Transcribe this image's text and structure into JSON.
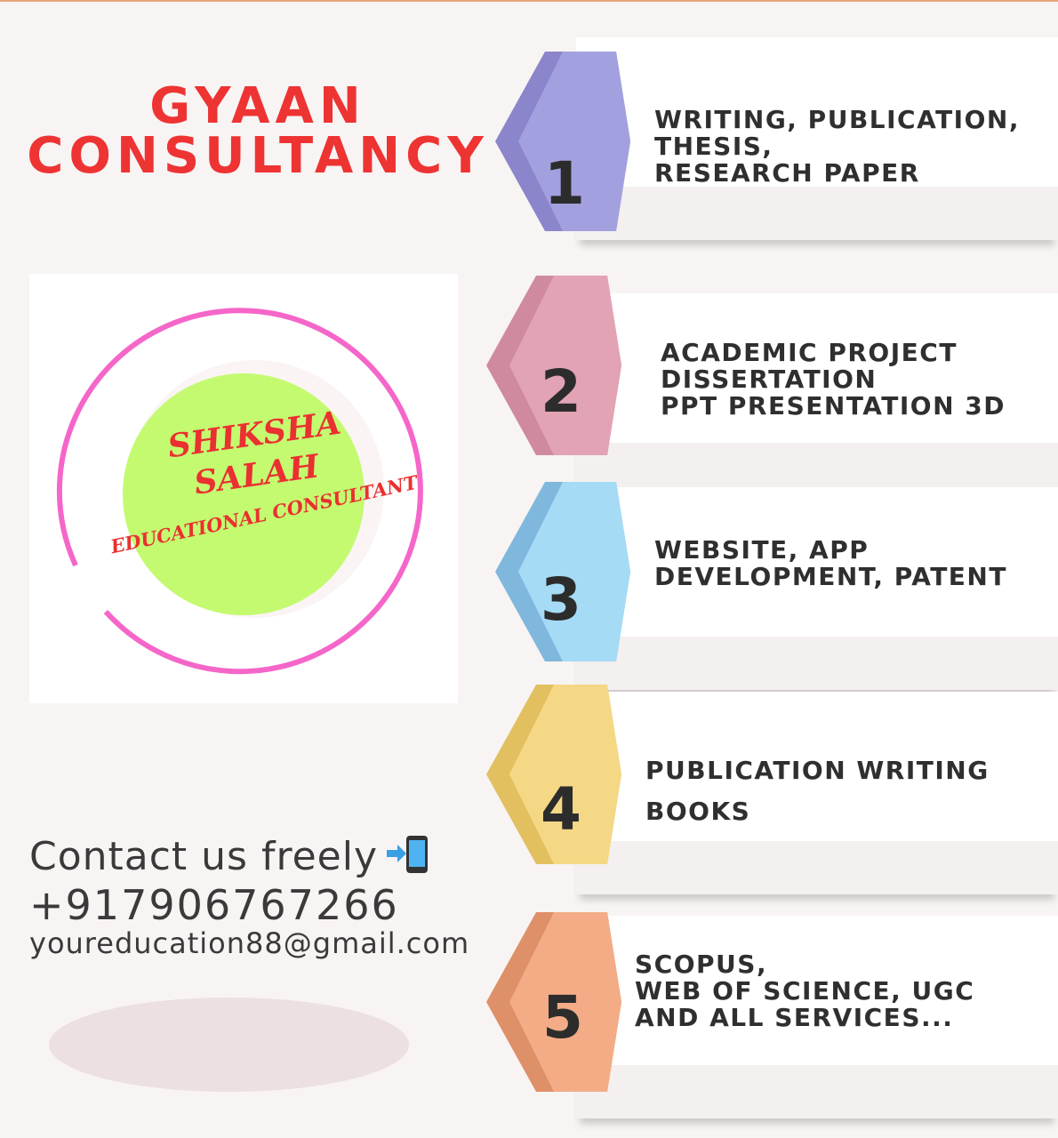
{
  "brand": {
    "line1": "GYAAN",
    "line2": "CONSULTANCY"
  },
  "logo": {
    "line1": "SHIKSHA",
    "line2": "SALAH",
    "line3": "EDUCATIONAL CONSULTANT"
  },
  "contact": {
    "label": "Contact us freely",
    "icon": "mobile-phone-arrow-icon",
    "phone": "+917906767266",
    "email": "youreducation88@gmail.com"
  },
  "steps": [
    {
      "number": "1",
      "color": "#a09bdc",
      "lines": [
        "WRITING, PUBLICATION,",
        "THESIS,",
        "RESEARCH PAPER"
      ]
    },
    {
      "number": "2",
      "color": "#e2a3b5",
      "lines": [
        "ACADEMIC PROJECT",
        "",
        "DISSERTATION",
        "PPT PRESENTATION 3D"
      ]
    },
    {
      "number": "3",
      "color": "#9fd6f2",
      "lines": [
        "WEBSITE, APP",
        "DEVELOPMENT, PATENT"
      ]
    },
    {
      "number": "4",
      "color": "#f4d580",
      "lines": [
        "PUBLICATION WRITING",
        "",
        "BOOKS"
      ]
    },
    {
      "number": "5",
      "color": "#f3a982",
      "lines": [
        "SCOPUS,",
        "WEB OF SCIENCE, UGC",
        "",
        "AND ALL SERVICES..."
      ]
    }
  ]
}
